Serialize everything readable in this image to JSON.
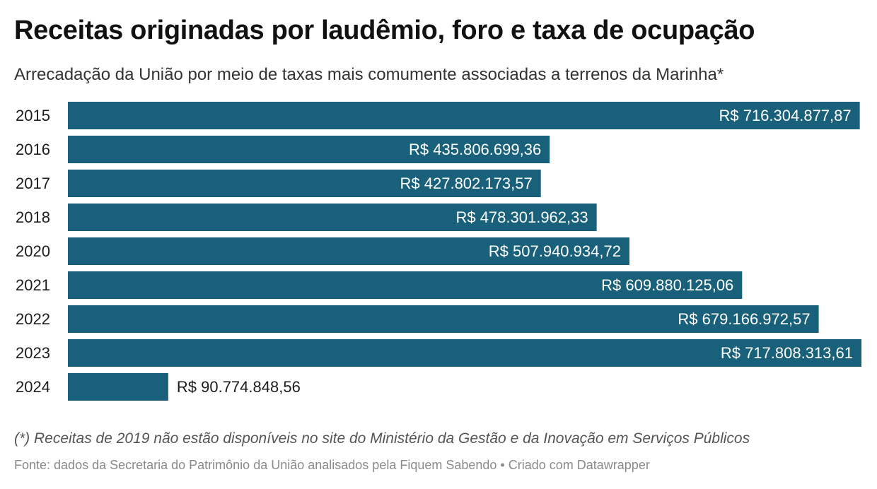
{
  "header": {
    "title": "Receitas originadas por laudêmio, foro e taxa de ocupação",
    "subtitle": "Arrecadação da União por meio de taxas mais comumente associadas a terrenos da Marinha*"
  },
  "footer": {
    "note": "(*) Receitas de 2019 não estão disponíveis no site do Ministério da Gestão e da Inovação em Serviços Públicos",
    "source": "Fonte: dados da Secretaria do Patrimônio da União analisados pela Fiquem Sabendo • Criado com Datawrapper"
  },
  "colors": {
    "bar": "#19607a",
    "label_inside": "#ffffff",
    "label_outside": "#1d1d1d"
  },
  "chart_data": {
    "type": "bar",
    "orientation": "horizontal",
    "categories": [
      "2015",
      "2016",
      "2017",
      "2018",
      "2020",
      "2021",
      "2022",
      "2023",
      "2024"
    ],
    "values": [
      716304877.87,
      435806699.36,
      427802173.57,
      478301962.33,
      507940934.72,
      609880125.06,
      679166972.57,
      717808313.61,
      90774848.56
    ],
    "value_labels": [
      "R$ 716.304.877,87",
      "R$ 435.806.699,36",
      "R$ 427.802.173,57",
      "R$ 478.301.962,33",
      "R$ 507.940.934,72",
      "R$ 609.880.125,06",
      "R$ 679.166.972,57",
      "R$ 717.808.313,61",
      "R$ 90.774.848,56"
    ],
    "title": "Receitas originadas por laudêmio, foro e taxa de ocupação",
    "subtitle": "Arrecadação da União por meio de taxas mais comumente associadas a terrenos da Marinha*",
    "xlabel": "",
    "ylabel": "",
    "xlim": [
      0,
      717808313.61
    ],
    "grid": false,
    "legend": "none"
  }
}
